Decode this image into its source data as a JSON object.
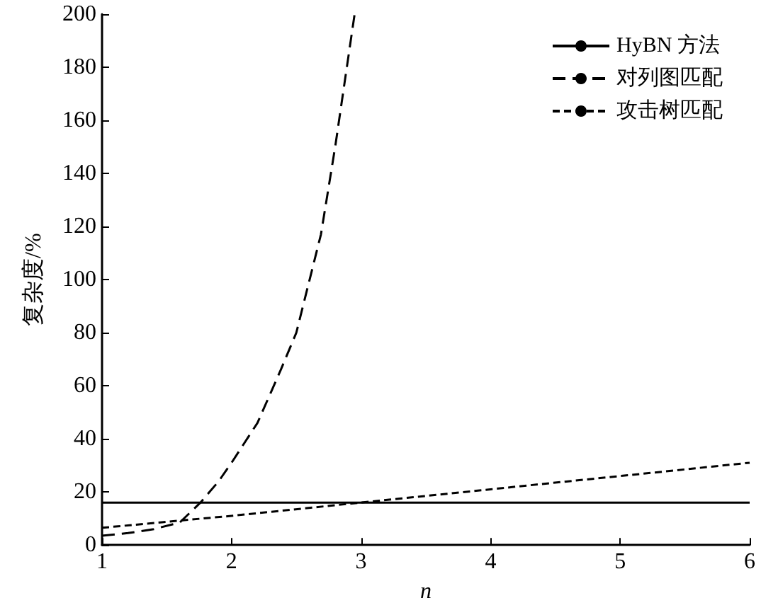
{
  "chart_data": {
    "type": "line",
    "xlabel": "n",
    "ylabel": "复杂度/%",
    "xlim": [
      1,
      6
    ],
    "xticks": [
      1,
      2,
      3,
      4,
      5,
      6
    ],
    "ylim": [
      0,
      200
    ],
    "yticks": [
      0,
      20,
      40,
      60,
      80,
      100,
      120,
      140,
      160,
      180,
      200
    ],
    "grid": false,
    "legend": "top right",
    "marker": "none",
    "series": [
      {
        "name": "HyBN 方法",
        "color": "#000000",
        "line_style": "solid",
        "x": [
          1,
          6
        ],
        "values": [
          16,
          16
        ]
      },
      {
        "name": "对列图匹配",
        "color": "#000000",
        "line_style": "dashed",
        "x": [
          1,
          1.2,
          1.4,
          1.6,
          1.76,
          1.9,
          2,
          2.2,
          2.38,
          2.5,
          2.69,
          2.8,
          2.95
        ],
        "values": [
          3.5,
          4.5,
          6,
          8.5,
          16,
          24,
          31,
          46,
          66,
          80,
          117,
          150,
          200
        ]
      },
      {
        "name": "攻击树匹配",
        "color": "#000000",
        "line_style": "dotted",
        "x": [
          1,
          2,
          3,
          4,
          5,
          6
        ],
        "values": [
          6.5,
          11,
          16,
          21,
          26,
          31
        ]
      }
    ]
  }
}
